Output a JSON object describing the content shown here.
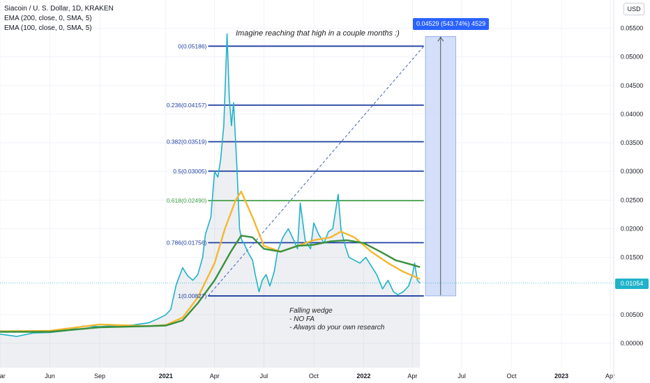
{
  "legend": {
    "title": "Siacoin / U. S. Dollar, 1D, KRAKEN",
    "ema200": "EMA (200, close, 0, SMA, 5)",
    "ema100": "EMA (100, close, 0, SMA, 5)"
  },
  "currency_button": "USD",
  "current_price_label": "0.01054",
  "measure_label": "0.04529 (543.74%) 4529",
  "headline": "Imagine reaching that high in a couple months :)",
  "notes": [
    "Falling wedge",
    "- NO FA",
    "- Always do your own research"
  ],
  "colors": {
    "price_line": "#20b2c9",
    "ema_orange": "#f5b731",
    "ema_green": "#3a8f3c",
    "fib_blue": "#1e3fa0",
    "fib_green": "#43a047",
    "measure_fill": "#cfdcf8",
    "price_tag": "#20b2c9",
    "measure_label_bg": "#2962ff"
  },
  "chart_data": {
    "type": "line",
    "symbol": "Siacoin / U. S. Dollar, 1D, KRAKEN",
    "x_ticks": [
      "Mar",
      "Jun",
      "Sep",
      "2021",
      "Apr",
      "Jul",
      "Oct",
      "2022",
      "Apr",
      "Jul",
      "Oct",
      "2023",
      "Apr"
    ],
    "y_ticks": [
      "0.05500",
      "0.05000",
      "0.04500",
      "0.04000",
      "0.03500",
      "0.03000",
      "0.02500",
      "0.02000",
      "0.01500",
      "0.01054",
      "0.00500",
      "0.00000"
    ],
    "ylim": [
      -0.006,
      0.058
    ],
    "x_range": [
      "2020-03-01",
      "2023-04-30"
    ],
    "series": [
      {
        "name": "Siacoin / U. S. Dollar",
        "x": [
          "2020-03-01",
          "2020-04-01",
          "2020-05-01",
          "2020-06-01",
          "2020-07-01",
          "2020-08-01",
          "2020-09-01",
          "2020-10-01",
          "2020-11-01",
          "2020-12-01",
          "2020-12-20",
          "2021-01-01",
          "2021-01-10",
          "2021-01-20",
          "2021-02-01",
          "2021-02-10",
          "2021-02-20",
          "2021-03-01",
          "2021-03-10",
          "2021-03-15",
          "2021-03-25",
          "2021-04-01",
          "2021-04-07",
          "2021-04-12",
          "2021-04-18",
          "2021-04-24",
          "2021-04-28",
          "2021-05-02",
          "2021-05-06",
          "2021-05-12",
          "2021-05-17",
          "2021-05-21",
          "2021-05-25",
          "2021-06-01",
          "2021-06-10",
          "2021-06-15",
          "2021-06-22",
          "2021-06-28",
          "2021-07-05",
          "2021-07-12",
          "2021-07-20",
          "2021-07-26",
          "2021-08-05",
          "2021-08-15",
          "2021-08-25",
          "2021-09-01",
          "2021-09-06",
          "2021-09-15",
          "2021-09-25",
          "2021-10-01",
          "2021-10-10",
          "2021-10-20",
          "2021-10-28",
          "2021-11-05",
          "2021-11-10",
          "2021-11-15",
          "2021-11-20",
          "2021-11-28",
          "2021-12-05",
          "2021-12-15",
          "2021-12-25",
          "2022-01-05",
          "2022-01-15",
          "2022-01-25",
          "2022-02-05",
          "2022-02-15",
          "2022-02-25",
          "2022-03-05",
          "2022-03-15",
          "2022-03-25",
          "2022-04-01",
          "2022-04-05",
          "2022-04-10",
          "2022-04-15"
        ],
        "values": [
          0.0016,
          0.0012,
          0.0018,
          0.0019,
          0.0022,
          0.003,
          0.0029,
          0.0031,
          0.0032,
          0.0036,
          0.0044,
          0.005,
          0.0059,
          0.0102,
          0.0132,
          0.0118,
          0.011,
          0.012,
          0.015,
          0.019,
          0.022,
          0.03,
          0.029,
          0.032,
          0.038,
          0.054,
          0.043,
          0.038,
          0.042,
          0.031,
          0.02,
          0.018,
          0.0175,
          0.016,
          0.0145,
          0.012,
          0.009,
          0.011,
          0.012,
          0.01,
          0.0125,
          0.016,
          0.0185,
          0.02,
          0.018,
          0.0165,
          0.0245,
          0.018,
          0.0165,
          0.021,
          0.019,
          0.0175,
          0.0195,
          0.02,
          0.023,
          0.026,
          0.02,
          0.017,
          0.015,
          0.0145,
          0.014,
          0.015,
          0.0135,
          0.012,
          0.0095,
          0.011,
          0.009,
          0.0085,
          0.009,
          0.01,
          0.012,
          0.014,
          0.011,
          0.0105
        ]
      },
      {
        "name": "EMA (100, close, 0, SMA, 5)",
        "x": [
          "2020-03-01",
          "2020-06-01",
          "2020-09-01",
          "2020-12-01",
          "2021-01-01",
          "2021-02-01",
          "2021-03-01",
          "2021-04-01",
          "2021-04-20",
          "2021-05-10",
          "2021-05-20",
          "2021-06-10",
          "2021-07-01",
          "2021-08-01",
          "2021-09-01",
          "2021-10-01",
          "2021-11-01",
          "2021-11-20",
          "2021-12-15",
          "2022-01-15",
          "2022-02-15",
          "2022-03-15",
          "2022-04-01",
          "2022-04-15"
        ],
        "values": [
          0.0021,
          0.0022,
          0.0033,
          0.003,
          0.0032,
          0.0045,
          0.008,
          0.014,
          0.02,
          0.025,
          0.0265,
          0.022,
          0.017,
          0.016,
          0.017,
          0.018,
          0.0185,
          0.0195,
          0.0185,
          0.016,
          0.014,
          0.0125,
          0.0118,
          0.0112
        ]
      },
      {
        "name": "EMA (200, close, 0, SMA, 5)",
        "x": [
          "2020-03-01",
          "2020-06-01",
          "2020-09-01",
          "2020-12-01",
          "2021-01-01",
          "2021-02-01",
          "2021-03-01",
          "2021-04-01",
          "2021-05-01",
          "2021-05-20",
          "2021-06-10",
          "2021-07-01",
          "2021-08-01",
          "2021-09-01",
          "2021-10-01",
          "2021-11-01",
          "2021-12-01",
          "2022-01-01",
          "2022-02-01",
          "2022-03-01",
          "2022-04-01",
          "2022-04-15"
        ],
        "values": [
          0.002,
          0.002,
          0.0028,
          0.003,
          0.0031,
          0.004,
          0.007,
          0.011,
          0.016,
          0.0188,
          0.0185,
          0.0165,
          0.016,
          0.017,
          0.0172,
          0.0178,
          0.018,
          0.0175,
          0.016,
          0.0145,
          0.0137,
          0.0133
        ]
      }
    ],
    "fibonacci": [
      {
        "label": "0(0.05186)",
        "value": 0.05186
      },
      {
        "label": "0.236(0.04157)",
        "value": 0.04157
      },
      {
        "label": "0.382(0.03519)",
        "value": 0.03519
      },
      {
        "label": "0.5(0.03005)",
        "value": 0.03005
      },
      {
        "label": "0.618(0.02490)",
        "value": 0.0249
      },
      {
        "label": "0.786(0.01756)",
        "value": 0.01756
      },
      {
        "label": "1(0.00827)",
        "value": 0.00827
      }
    ],
    "current_price": 0.01054,
    "annotations": [
      "Imagine reaching that high in a couple months :)",
      "Falling wedge",
      "- NO FA",
      "- Always do your own research",
      "0.04529 (543.74%) 4529"
    ]
  }
}
